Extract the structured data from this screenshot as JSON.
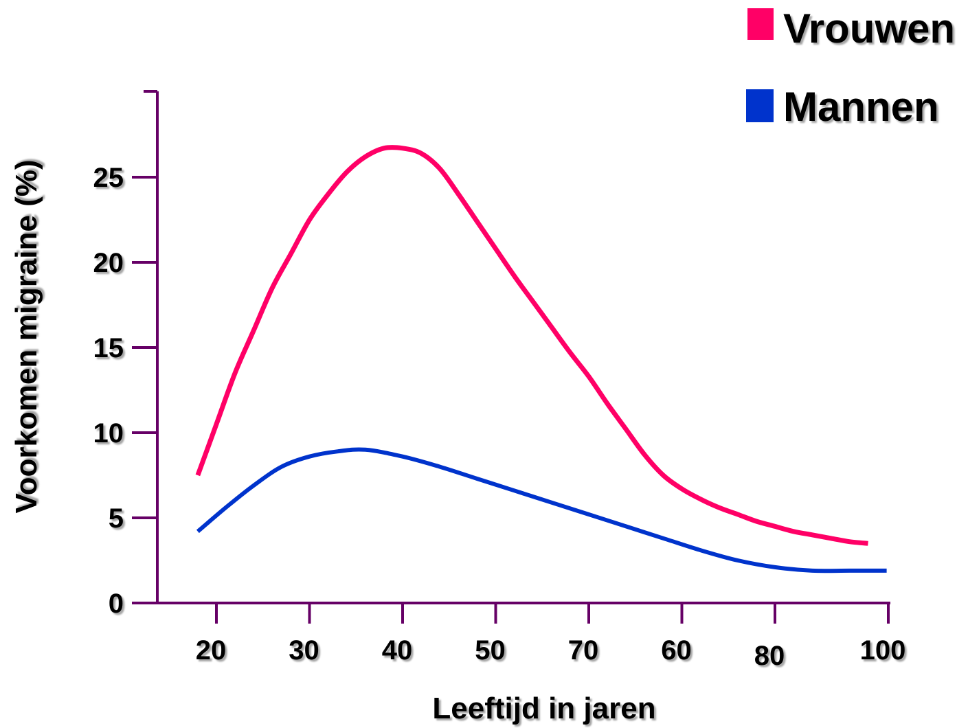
{
  "chart_data": {
    "type": "line",
    "xlabel": "Leeftijd in jaren",
    "ylabel": "Voorkomen migraine (%)",
    "x_tick_labels": [
      "20",
      "30",
      "40",
      "50",
      "70",
      "60",
      "80",
      "100"
    ],
    "y_tick_labels": [
      "0",
      "5",
      "10",
      "15",
      "20",
      "25"
    ],
    "ylim": [
      0,
      30
    ],
    "grid": false,
    "legend_position": "top-right",
    "axis_color": "#660066",
    "series": [
      {
        "name": "Vrouwen",
        "color": "#ff0066",
        "x": [
          18,
          20,
          22,
          24,
          26,
          28,
          30,
          32,
          34,
          36,
          38,
          40,
          42,
          44,
          46,
          48,
          50,
          52,
          54,
          56,
          58,
          60,
          62,
          64,
          66,
          68,
          70,
          72,
          74,
          76,
          78,
          80,
          82,
          84,
          86,
          88,
          90
        ],
        "values": [
          7.5,
          10.5,
          13.5,
          16.0,
          18.5,
          20.5,
          22.5,
          24.0,
          25.3,
          26.2,
          26.7,
          26.7,
          26.4,
          25.5,
          24.0,
          22.4,
          20.8,
          19.2,
          17.7,
          16.2,
          14.7,
          13.3,
          11.7,
          10.2,
          8.7,
          7.5,
          6.7,
          6.1,
          5.6,
          5.2,
          4.8,
          4.5,
          4.2,
          4.0,
          3.8,
          3.6,
          3.5
        ]
      },
      {
        "name": "Mannen",
        "color": "#0033cc",
        "x": [
          18,
          21,
          24,
          27,
          30,
          33,
          36,
          40,
          44,
          48,
          52,
          56,
          60,
          64,
          68,
          72,
          76,
          80,
          84,
          88,
          92
        ],
        "values": [
          4.2,
          5.6,
          6.9,
          8.0,
          8.6,
          8.9,
          9.0,
          8.6,
          8.0,
          7.3,
          6.6,
          5.9,
          5.2,
          4.5,
          3.8,
          3.1,
          2.5,
          2.1,
          1.9,
          1.9,
          1.9
        ]
      }
    ]
  }
}
